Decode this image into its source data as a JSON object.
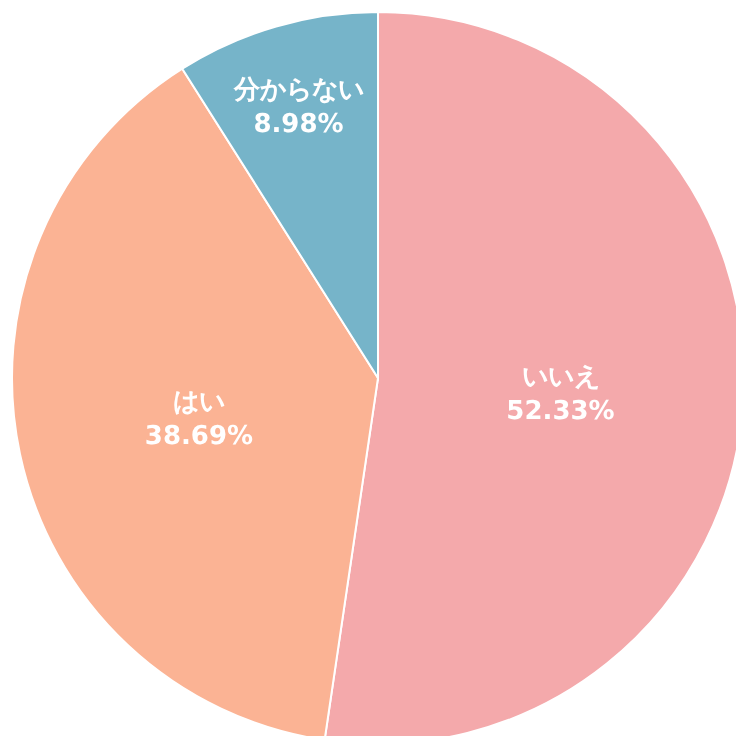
{
  "chart_data": {
    "type": "pie",
    "categories": [
      "いいえ",
      "はい",
      "分からない"
    ],
    "values": [
      52.33,
      38.69,
      8.98
    ],
    "value_labels": [
      "52.33%",
      "38.69%",
      "8.98%"
    ],
    "colors": [
      "#f4a9ab",
      "#fbb394",
      "#76b4c9"
    ],
    "legend": false
  }
}
